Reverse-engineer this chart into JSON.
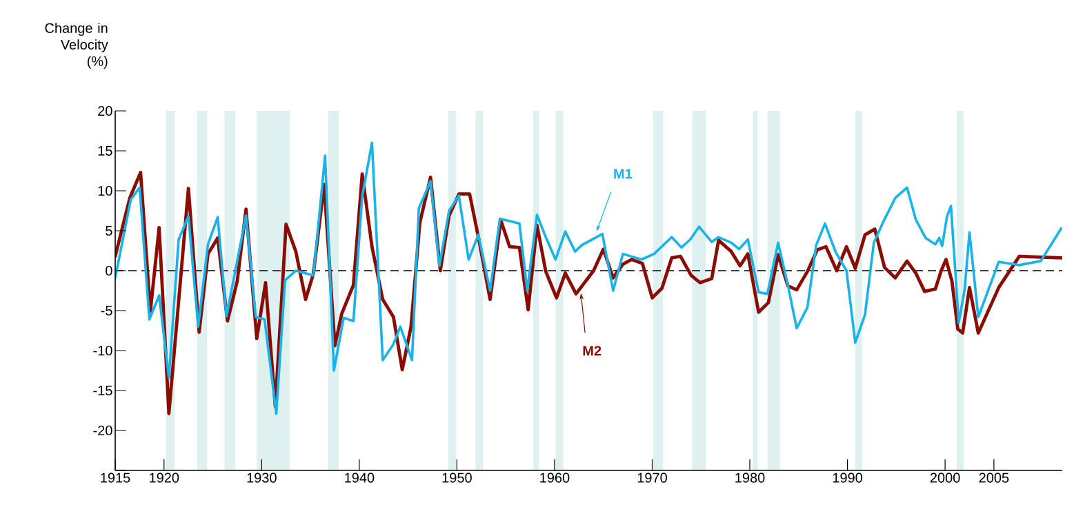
{
  "chart_data": {
    "type": "line",
    "ylabel": "Change in Velocity (%)",
    "xlim": [
      1915,
      2012
    ],
    "ylim": [
      -25,
      20
    ],
    "xticks": [
      1915,
      1920,
      1930,
      1940,
      1950,
      1960,
      1970,
      1980,
      1990,
      2000,
      2005
    ],
    "annotations": [
      "0"
    ],
    "yticks": [
      {
        "value": -25,
        "label": null
      },
      -20,
      -15,
      -10,
      -5,
      0,
      5,
      10,
      15,
      20
    ],
    "legend": false,
    "grid": false,
    "marker": "none",
    "line_style": "solid",
    "ref_lines": [
      {
        "axis": "y",
        "value": 0,
        "color": "#000000",
        "line_style": "dashed"
      }
    ],
    "bands": [
      {
        "axis": "x",
        "from": 1920.2,
        "to": 1921.1,
        "color": "#dff0f0"
      },
      {
        "axis": "x",
        "from": 1923.4,
        "to": 1924.4,
        "color": "#dff0f0"
      },
      {
        "axis": "x",
        "from": 1926.2,
        "to": 1927.3,
        "color": "#dff0f0"
      },
      {
        "axis": "x",
        "from": 1929.5,
        "to": 1932.9,
        "color": "#dff0f0"
      },
      {
        "axis": "x",
        "from": 1936.8,
        "to": 1937.9,
        "color": "#dff0f0"
      },
      {
        "axis": "x",
        "from": 1949.1,
        "to": 1949.9,
        "color": "#dff0f0"
      },
      {
        "axis": "x",
        "from": 1951.9,
        "to": 1952.7,
        "color": "#dff0f0"
      },
      {
        "axis": "x",
        "from": 1957.8,
        "to": 1958.4,
        "color": "#dff0f0"
      },
      {
        "axis": "x",
        "from": 1960.1,
        "to": 1960.9,
        "color": "#dff0f0"
      },
      {
        "axis": "x",
        "from": 1970.1,
        "to": 1971.1,
        "color": "#dff0f0"
      },
      {
        "axis": "x",
        "from": 1974.1,
        "to": 1975.5,
        "color": "#dff0f0"
      },
      {
        "axis": "x",
        "from": 1980.3,
        "to": 1980.8,
        "color": "#dff0f0"
      },
      {
        "axis": "x",
        "from": 1981.8,
        "to": 1983.1,
        "color": "#dff0f0"
      },
      {
        "axis": "x",
        "from": 1990.8,
        "to": 1991.5,
        "color": "#dff0f0"
      },
      {
        "axis": "x",
        "from": 2001.2,
        "to": 2001.9,
        "color": "#dff0f0"
      }
    ],
    "series": [
      {
        "name": "M2",
        "color": "#8b0c02",
        "x": [
          1915,
          1916.5,
          1917.6,
          1918.6,
          1919.5,
          1920.5,
          1922.5,
          1923.6,
          1924.5,
          1925.5,
          1926.5,
          1927.5,
          1928.4,
          1929.5,
          1930.4,
          1931.4,
          1932.5,
          1933.5,
          1934.5,
          1935.3,
          1936.4,
          1937.5,
          1938.2,
          1939.4,
          1940.3,
          1941.3,
          1942.4,
          1943.5,
          1944.4,
          1945.3,
          1946.2,
          1947.3,
          1948.3,
          1949.2,
          1950.2,
          1951.3,
          1952.2,
          1953.4,
          1954.5,
          1955.4,
          1956.4,
          1957.3,
          1958.2,
          1959.1,
          1960.2,
          1961.1,
          1962.2,
          1964.0,
          1965.0,
          1966.0,
          1967.0,
          1967.9,
          1969.0,
          1970.0,
          1971.0,
          1972.0,
          1972.9,
          1974.0,
          1974.9,
          1976.1,
          1976.8,
          1978.1,
          1979.0,
          1979.8,
          1980.9,
          1981.9,
          1982.9,
          1983.9,
          1984.8,
          1985.9,
          1986.9,
          1987.8,
          1988.9,
          1989.9,
          1990.8,
          1991.8,
          1992.8,
          1993.8,
          1994.9,
          1996.1,
          1997.0,
          1997.9,
          1999.0,
          1999.6,
          2000.1,
          2000.7,
          2001.3,
          2001.8,
          2002.5,
          2003.4,
          2005.5,
          2007.6,
          2009.8,
          2011.9
        ],
        "values": [
          1.8,
          9.1,
          12.3,
          -5.1,
          5.4,
          -17.9,
          10.3,
          -7.7,
          2.1,
          4.1,
          -6.3,
          -1.3,
          7.7,
          -8.5,
          -1.5,
          -17.0,
          5.8,
          2.4,
          -3.6,
          -0.4,
          10.8,
          -9.4,
          -5.4,
          -1.8,
          12.1,
          3.0,
          -3.6,
          -5.8,
          -12.4,
          -7.0,
          6.0,
          11.7,
          0.0,
          6.9,
          9.6,
          9.6,
          4.2,
          -3.6,
          6.3,
          3.0,
          2.9,
          -4.9,
          5.7,
          -0.1,
          -3.4,
          -0.3,
          -2.9,
          0.0,
          2.7,
          -0.9,
          0.8,
          1.4,
          0.9,
          -3.4,
          -2.2,
          1.6,
          1.8,
          -0.6,
          -1.5,
          -1.0,
          3.8,
          2.4,
          0.6,
          2.1,
          -5.2,
          -4.0,
          2.0,
          -1.9,
          -2.4,
          -0.1,
          2.6,
          3.0,
          0.0,
          3.0,
          0.3,
          4.5,
          5.2,
          0.4,
          -0.9,
          1.2,
          -0.3,
          -2.6,
          -2.3,
          0.0,
          1.4,
          -1.3,
          -7.3,
          -7.8,
          -2.1,
          -7.8,
          -2.1,
          1.8,
          1.7,
          1.6
        ]
      },
      {
        "name": "M1",
        "color": "#18b4e9",
        "x": [
          1915,
          1916.6,
          1917.5,
          1918.5,
          1919.5,
          1920.5,
          1921.5,
          1922.5,
          1923.5,
          1924.5,
          1925.5,
          1926.4,
          1928.4,
          1929.4,
          1930.3,
          1931.5,
          1932.4,
          1933.5,
          1935.3,
          1936.5,
          1937.4,
          1938.4,
          1939.4,
          1940.3,
          1941.3,
          1942.4,
          1943.5,
          1944.2,
          1945.4,
          1946.1,
          1947.3,
          1948.2,
          1949.2,
          1950.2,
          1951.2,
          1952.2,
          1953.4,
          1954.4,
          1956.4,
          1957.2,
          1958.2,
          1959.1,
          1960.1,
          1961.1,
          1962.1,
          1962.8,
          1964.9,
          1966.0,
          1967.0,
          1968.9,
          1970.2,
          1972.0,
          1973.0,
          1973.9,
          1974.8,
          1976.1,
          1976.8,
          1978.1,
          1978.9,
          1979.8,
          1980.9,
          1981.8,
          1982.9,
          1983.9,
          1984.8,
          1985.9,
          1986.8,
          1987.7,
          1988.8,
          1989.9,
          1990.8,
          1991.8,
          1992.7,
          1993.7,
          1994.9,
          1996.1,
          1997.0,
          1998.0,
          1999.0,
          1999.4,
          1999.7,
          2000.2,
          2000.6,
          2001.4,
          2002.0,
          2002.5,
          2003.4,
          2005.5,
          2007.6,
          2009.8,
          2011.9
        ],
        "values": [
          -0.9,
          8.9,
          10.4,
          -6.1,
          -3.1,
          -13.4,
          3.9,
          6.8,
          -7.0,
          3.3,
          6.7,
          -5.7,
          6.9,
          -5.8,
          -6.1,
          -17.9,
          -1.2,
          0.0,
          -0.6,
          14.4,
          -12.5,
          -5.9,
          -6.3,
          9.3,
          16.0,
          -11.2,
          -9.2,
          -7.0,
          -11.2,
          7.8,
          11.2,
          0.6,
          7.5,
          9.4,
          1.4,
          4.5,
          -2.5,
          6.5,
          5.9,
          -2.5,
          7.0,
          4.2,
          1.4,
          4.9,
          2.4,
          3.2,
          4.6,
          -2.5,
          2.1,
          1.4,
          2.1,
          4.2,
          2.9,
          3.9,
          5.5,
          3.6,
          4.2,
          3.5,
          2.7,
          3.9,
          -2.7,
          -2.9,
          3.5,
          -1.8,
          -7.2,
          -4.6,
          3.2,
          5.9,
          2.3,
          0.0,
          -9.0,
          -5.5,
          3.5,
          6.2,
          9.1,
          10.4,
          6.4,
          4.1,
          3.3,
          4.1,
          3.1,
          6.8,
          8.1,
          -6.5,
          -2.4,
          4.8,
          -5.8,
          1.1,
          0.7,
          1.2,
          5.3
        ]
      }
    ]
  }
}
